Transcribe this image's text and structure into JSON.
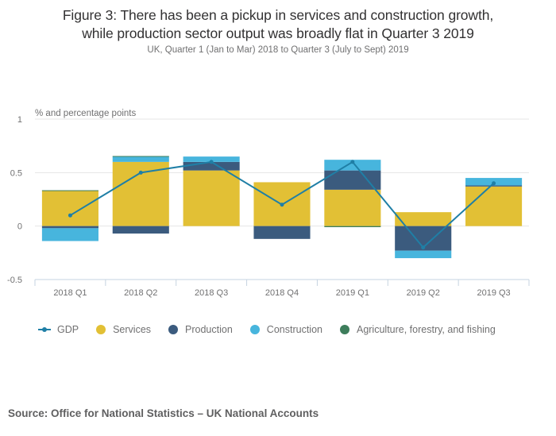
{
  "title_line1": "Figure 3: There has been a pickup in services and construction growth,",
  "title_line2": "while production sector output was broadly flat in Quarter 3 2019",
  "subtitle": "UK, Quarter 1 (Jan to Mar) 2018 to Quarter 3 (July to Sept) 2019",
  "source": "Source: Office for National Statistics – UK National Accounts",
  "colors": {
    "gdp": "#1f7fa6",
    "services": "#e2c035",
    "production": "#3b5b7e",
    "construction": "#47b5dd",
    "agriculture": "#3d7d5b",
    "grid": "#e4e4e4",
    "axis": "#c6d3e0"
  },
  "legend": [
    {
      "key": "gdp",
      "label": "GDP",
      "marker": "line"
    },
    {
      "key": "services",
      "label": "Services",
      "marker": "circle"
    },
    {
      "key": "production",
      "label": "Production",
      "marker": "circle"
    },
    {
      "key": "construction",
      "label": "Construction",
      "marker": "circle"
    },
    {
      "key": "agriculture",
      "label": "Agriculture, forestry, and fishing",
      "marker": "circle"
    }
  ],
  "chart_data": {
    "type": "bar",
    "stacked": true,
    "title": "Figure 3: There has been a pickup in services and construction growth, while production sector output was broadly flat in Quarter 3 2019",
    "subtitle": "UK, Quarter 1 (Jan to Mar) 2018 to Quarter 3 (July to Sept) 2019",
    "ylabel": "% and percentage points",
    "xlabel": "",
    "ylim": [
      -0.5,
      1
    ],
    "yticks": [
      1,
      0.5,
      0,
      -0.5
    ],
    "ytick_labels": [
      "1",
      "0.5",
      "0",
      "-0.5"
    ],
    "grid": true,
    "legend_position": "bottom",
    "categories": [
      "2018 Q1",
      "2018 Q2",
      "2018 Q3",
      "2018 Q4",
      "2019 Q1",
      "2019 Q2",
      "2019 Q3"
    ],
    "series": [
      {
        "name": "Services",
        "key": "services",
        "type": "bar",
        "values": [
          0.33,
          0.6,
          0.52,
          0.41,
          0.34,
          0.13,
          0.37
        ]
      },
      {
        "name": "Production",
        "key": "production",
        "type": "bar",
        "values": [
          -0.02,
          -0.07,
          0.08,
          -0.12,
          0.18,
          -0.23,
          0.01
        ]
      },
      {
        "name": "Construction",
        "key": "construction",
        "type": "bar",
        "values": [
          -0.12,
          0.05,
          0.05,
          0.0,
          0.1,
          -0.07,
          0.07
        ]
      },
      {
        "name": "Agriculture, forestry, and fishing",
        "key": "agriculture",
        "type": "bar",
        "values": [
          0.005,
          0.005,
          0.0,
          0.0,
          -0.01,
          0.0,
          0.0
        ]
      },
      {
        "name": "GDP",
        "key": "gdp",
        "type": "line",
        "values": [
          0.1,
          0.5,
          0.6,
          0.2,
          0.6,
          -0.2,
          0.4
        ]
      }
    ]
  }
}
